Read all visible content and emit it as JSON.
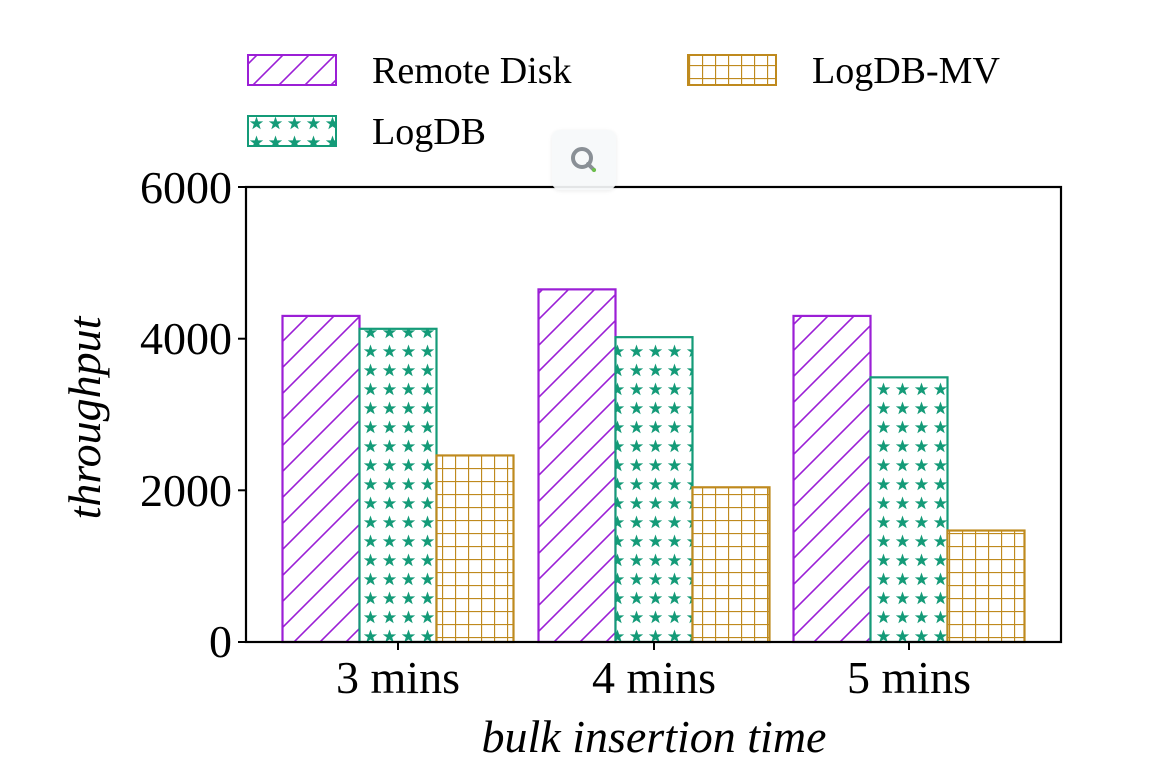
{
  "chart_data": {
    "type": "bar",
    "categories": [
      "3 mins",
      "4 mins",
      "5 mins"
    ],
    "series": [
      {
        "name": "Remote Disk",
        "values": [
          4300,
          4650,
          4300
        ],
        "color": "#9b1fd6",
        "pattern": "diagonal-hatch"
      },
      {
        "name": "LogDB",
        "values": [
          4130,
          4020,
          3490
        ],
        "color": "#149b78",
        "pattern": "stars"
      },
      {
        "name": "LogDB-MV",
        "values": [
          2460,
          2040,
          1470
        ],
        "color": "#bf8a1e",
        "pattern": "grid"
      }
    ],
    "xlabel": "bulk insertion time",
    "ylabel": "throughput",
    "ylim": [
      0,
      6000
    ],
    "yticks": [
      "0",
      "2000",
      "4000",
      "6000"
    ],
    "grid": false,
    "legend_position": "top"
  },
  "overlay": {
    "icon": "search-icon"
  }
}
